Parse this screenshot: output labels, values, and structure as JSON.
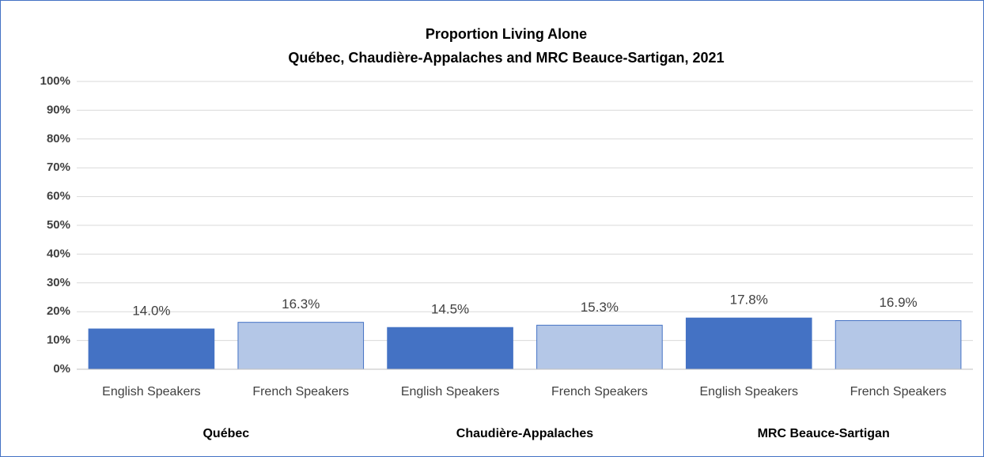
{
  "chart_data": {
    "type": "bar",
    "title": "Proportion Living Alone",
    "subtitle": "Québec, Chaudière-Appalaches  and MRC Beauce-Sartigan,  2021",
    "categories": [
      "English Speakers",
      "French Speakers",
      "English Speakers",
      "French Speakers",
      "English Speakers",
      "French Speakers"
    ],
    "groups": [
      "Québec",
      "Chaudière-Appalaches",
      "MRC Beauce-Sartigan"
    ],
    "values": [
      14.0,
      16.3,
      14.5,
      15.3,
      17.8,
      16.9
    ],
    "value_labels": [
      "14.0%",
      "16.3%",
      "14.5%",
      "15.3%",
      "17.8%",
      "16.9%"
    ],
    "colors": [
      "#4472c4",
      "#b4c7e7",
      "#4472c4",
      "#b4c7e7",
      "#4472c4",
      "#b4c7e7"
    ],
    "ylim": [
      0,
      100
    ],
    "yticks": [
      {
        "value": 0,
        "label": "0%"
      },
      {
        "value": 10,
        "label": "10%"
      },
      {
        "value": 20,
        "label": "20%"
      },
      {
        "value": 30,
        "label": "30%"
      },
      {
        "value": 40,
        "label": "40%"
      },
      {
        "value": 50,
        "label": "50%"
      },
      {
        "value": 60,
        "label": "60%"
      },
      {
        "value": 70,
        "label": "70%"
      },
      {
        "value": 80,
        "label": "80%"
      },
      {
        "value": 90,
        "label": "90%"
      },
      {
        "value": 100,
        "label": "100%"
      }
    ],
    "grid": true
  }
}
